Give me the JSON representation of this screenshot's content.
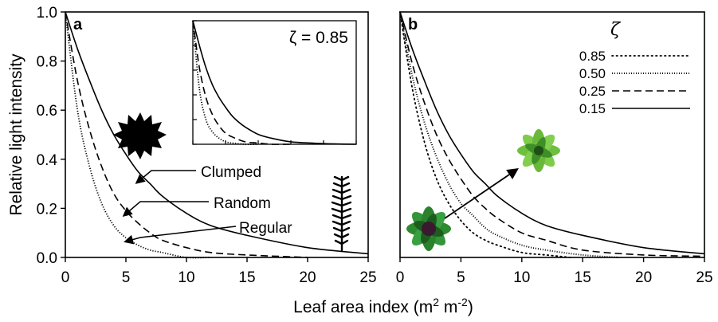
{
  "chart_data": [
    {
      "panel": "a",
      "type": "line",
      "xlabel": "Leaf area index (m² m⁻²)",
      "ylabel": "Relative light intensity",
      "xlim": [
        0,
        25
      ],
      "ylim": [
        0,
        1.0
      ],
      "xticks": [
        "0",
        "5",
        "10",
        "15",
        "20",
        "25"
      ],
      "yticks": [
        "0.0",
        "0.2",
        "0.4",
        "0.6",
        "0.8",
        "1.0"
      ],
      "grid": false,
      "series": [
        {
          "name": "Clumped",
          "style": "solid",
          "x": [
            0,
            1,
            2,
            3,
            4,
            5,
            6,
            7,
            8,
            10,
            12,
            15,
            20,
            25
          ],
          "y": [
            1.0,
            0.85,
            0.72,
            0.6,
            0.5,
            0.42,
            0.35,
            0.3,
            0.25,
            0.18,
            0.13,
            0.09,
            0.04,
            0.015
          ]
        },
        {
          "name": "Random",
          "style": "dashed",
          "x": [
            0,
            1,
            2,
            3,
            4,
            5,
            6,
            7,
            8,
            10,
            12,
            15,
            20
          ],
          "y": [
            1.0,
            0.72,
            0.52,
            0.37,
            0.26,
            0.19,
            0.14,
            0.1,
            0.07,
            0.04,
            0.02,
            0.01,
            0.0
          ]
        },
        {
          "name": "Regular",
          "style": "dotted",
          "x": [
            0,
            1,
            2,
            3,
            4,
            5,
            6,
            7,
            8,
            10,
            12
          ],
          "y": [
            1.0,
            0.6,
            0.37,
            0.22,
            0.13,
            0.08,
            0.05,
            0.03,
            0.02,
            0.0,
            0.0
          ]
        }
      ],
      "annotations": [
        "Clumped",
        "Random",
        "Regular"
      ],
      "inset": {
        "label": "ζ = 0.85",
        "series": [
          {
            "style": "solid",
            "x": [
              0,
              1,
              2,
              3,
              4,
              5,
              6,
              7,
              8,
              10,
              12,
              15,
              20,
              25
            ],
            "y": [
              1.0,
              0.8,
              0.62,
              0.48,
              0.38,
              0.3,
              0.23,
              0.18,
              0.14,
              0.08,
              0.05,
              0.02,
              0.005,
              0.0
            ]
          },
          {
            "style": "dashed",
            "x": [
              0,
              1,
              2,
              3,
              4,
              5,
              6,
              8,
              10,
              12,
              15
            ],
            "y": [
              1.0,
              0.62,
              0.38,
              0.24,
              0.15,
              0.09,
              0.06,
              0.02,
              0.01,
              0.0,
              0.0
            ]
          },
          {
            "style": "dotted",
            "x": [
              0,
              1,
              2,
              3,
              4,
              5,
              6,
              8,
              10
            ],
            "y": [
              1.0,
              0.45,
              0.2,
              0.1,
              0.05,
              0.02,
              0.01,
              0.0,
              0.0
            ]
          }
        ]
      }
    },
    {
      "panel": "b",
      "type": "line",
      "xlabel": "Leaf area index (m² m⁻²)",
      "xlim": [
        0,
        25
      ],
      "ylim": [
        0,
        1.0
      ],
      "xticks": [
        "0",
        "5",
        "10",
        "15",
        "20",
        "25"
      ],
      "grid": false,
      "legend": {
        "title": "ζ",
        "position": "top-right"
      },
      "series": [
        {
          "name": "0.85",
          "style": "dotted-sparse",
          "x": [
            0,
            1,
            2,
            3,
            4,
            5,
            6,
            7,
            8,
            10,
            12,
            14
          ],
          "y": [
            1.0,
            0.69,
            0.47,
            0.32,
            0.22,
            0.15,
            0.1,
            0.07,
            0.05,
            0.02,
            0.01,
            0.0
          ]
        },
        {
          "name": "0.50",
          "style": "dotted-dense",
          "x": [
            0,
            1,
            2,
            3,
            4,
            5,
            6,
            7,
            8,
            10,
            12,
            15,
            18
          ],
          "y": [
            1.0,
            0.74,
            0.55,
            0.41,
            0.3,
            0.22,
            0.17,
            0.12,
            0.09,
            0.05,
            0.03,
            0.01,
            0.0
          ]
        },
        {
          "name": "0.25",
          "style": "dashed",
          "x": [
            0,
            1,
            2,
            3,
            4,
            5,
            6,
            7,
            8,
            10,
            12,
            15,
            20,
            25
          ],
          "y": [
            1.0,
            0.79,
            0.63,
            0.5,
            0.4,
            0.32,
            0.25,
            0.2,
            0.16,
            0.1,
            0.07,
            0.03,
            0.01,
            0.005
          ]
        },
        {
          "name": "0.15",
          "style": "solid",
          "x": [
            0,
            1,
            2,
            3,
            4,
            5,
            6,
            7,
            8,
            10,
            12,
            15,
            20,
            25
          ],
          "y": [
            1.0,
            0.85,
            0.72,
            0.6,
            0.5,
            0.42,
            0.35,
            0.3,
            0.25,
            0.18,
            0.13,
            0.09,
            0.04,
            0.015
          ]
        }
      ]
    }
  ]
}
